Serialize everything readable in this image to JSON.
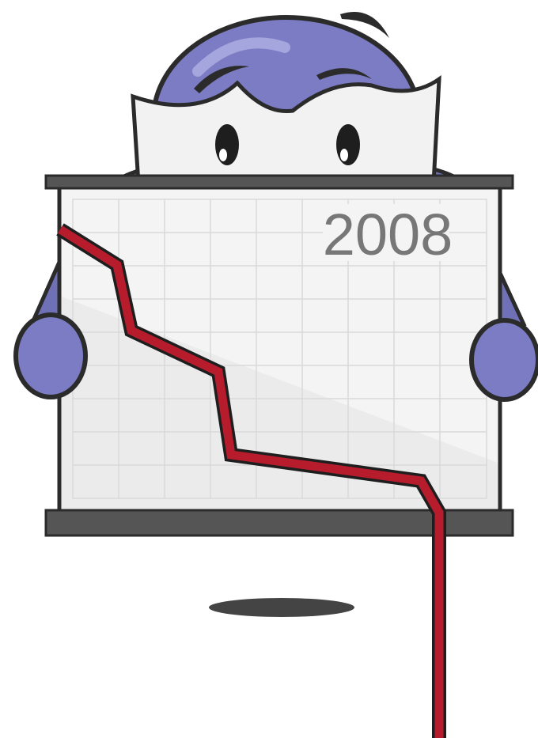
{
  "board": {
    "year": "2008"
  }
}
